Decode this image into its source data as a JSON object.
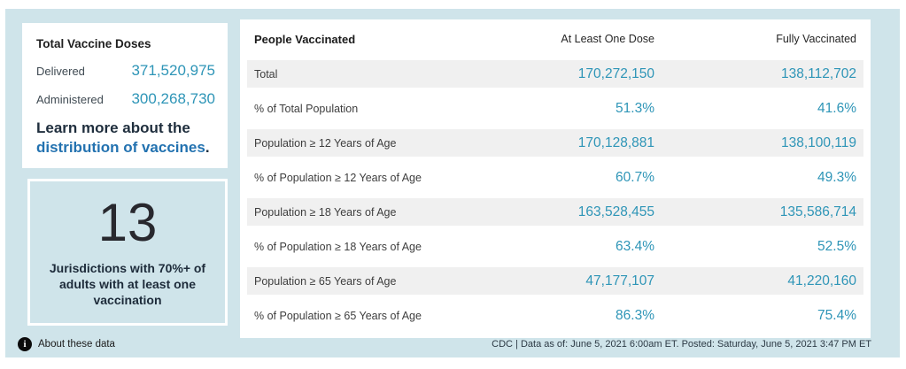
{
  "colors": {
    "panel_background": "#cfe4ea",
    "value_teal": "#2e95b7",
    "link_blue": "#2372b0",
    "shaded_row": "#f0f0f0",
    "dark_navy_text": "#1f2e3d"
  },
  "summary_card": {
    "title": "Total Vaccine Doses",
    "delivered_label": "Delivered",
    "delivered_value": "371,520,975",
    "administered_label": "Administered",
    "administered_value": "300,268,730",
    "learn_more_prefix": "Learn more about the ",
    "learn_more_link": "distribution of vaccines",
    "learn_more_suffix": "."
  },
  "jurisdictions_card": {
    "count": "13",
    "caption": "Jurisdictions with 70%+ of adults with at least one vaccination"
  },
  "table": {
    "title": "People Vaccinated",
    "col_one_dose": "At Least One Dose",
    "col_fully": "Fully Vaccinated",
    "rows": [
      {
        "label": "Total",
        "one_dose": "170,272,150",
        "fully": "138,112,702"
      },
      {
        "label": "% of Total Population",
        "one_dose": "51.3%",
        "fully": "41.6%"
      },
      {
        "label": "Population ≥ 12 Years of Age",
        "one_dose": "170,128,881",
        "fully": "138,100,119"
      },
      {
        "label": "% of Population ≥ 12 Years of Age",
        "one_dose": "60.7%",
        "fully": "49.3%"
      },
      {
        "label": "Population ≥ 18 Years of Age",
        "one_dose": "163,528,455",
        "fully": "135,586,714"
      },
      {
        "label": "% of Population ≥ 18 Years of Age",
        "one_dose": "63.4%",
        "fully": "52.5%"
      },
      {
        "label": "Population ≥ 65 Years of Age",
        "one_dose": "47,177,107",
        "fully": "41,220,160"
      },
      {
        "label": "% of Population ≥ 65 Years of Age",
        "one_dose": "86.3%",
        "fully": "75.4%"
      }
    ]
  },
  "footer": {
    "info_glyph": "i",
    "about_label": "About these data",
    "source_text": "CDC | Data as of: June 5, 2021 6:00am ET. Posted: Saturday, June 5, 2021 3:47 PM ET"
  }
}
